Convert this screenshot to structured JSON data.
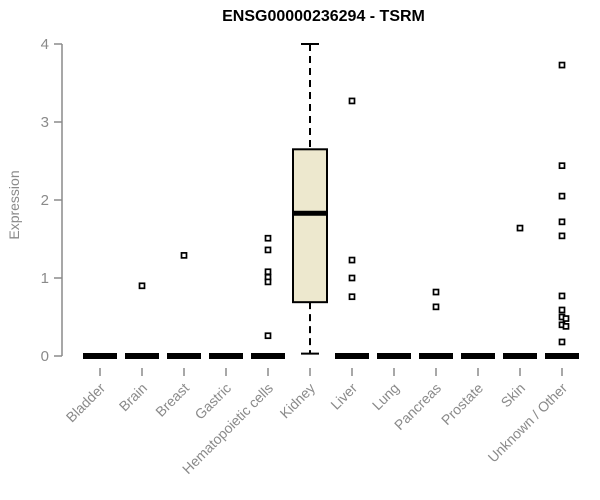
{
  "chart_data": {
    "type": "box",
    "title": "ENSG00000236294 - TSRM",
    "ylabel": "Expression",
    "xlabel": "",
    "ylim": [
      0,
      4
    ],
    "yticks": [
      0,
      1,
      2,
      3,
      4
    ],
    "grid": false,
    "legend": "none",
    "box_fill": "#ede8ce",
    "box_stroke": "#000000",
    "axis_color": "#8a8a8a",
    "categories": [
      "Bladder",
      "Brain",
      "Breast",
      "Gastric",
      "Hematopoietic cells",
      "Kidney",
      "Liver",
      "Lung",
      "Pancreas",
      "Prostate",
      "Skin",
      "Unknown / Other"
    ],
    "series": [
      {
        "category": "Bladder",
        "median": 0,
        "q1": 0,
        "q3": 0,
        "whisker_low": 0,
        "whisker_high": 0,
        "outliers": []
      },
      {
        "category": "Brain",
        "median": 0,
        "q1": 0,
        "q3": 0,
        "whisker_low": 0,
        "whisker_high": 0,
        "outliers": [
          0.9
        ]
      },
      {
        "category": "Breast",
        "median": 0,
        "q1": 0,
        "q3": 0,
        "whisker_low": 0,
        "whisker_high": 0,
        "outliers": [
          1.29
        ]
      },
      {
        "category": "Gastric",
        "median": 0,
        "q1": 0,
        "q3": 0,
        "whisker_low": 0,
        "whisker_high": 0,
        "outliers": []
      },
      {
        "category": "Hematopoietic cells",
        "median": 0,
        "q1": 0,
        "q3": 0,
        "whisker_low": 0,
        "whisker_high": 0,
        "outliers": [
          1.51,
          1.36,
          1.08,
          1.01,
          0.95,
          0.26
        ]
      },
      {
        "category": "Kidney",
        "median": 1.83,
        "q1": 0.69,
        "q3": 2.65,
        "whisker_low": 0.03,
        "whisker_high": 4.0,
        "outliers": []
      },
      {
        "category": "Liver",
        "median": 0,
        "q1": 0,
        "q3": 0,
        "whisker_low": 0,
        "whisker_high": 0,
        "outliers": [
          3.27,
          1.23,
          1.0,
          0.76
        ]
      },
      {
        "category": "Lung",
        "median": 0,
        "q1": 0,
        "q3": 0,
        "whisker_low": 0,
        "whisker_high": 0,
        "outliers": []
      },
      {
        "category": "Pancreas",
        "median": 0,
        "q1": 0,
        "q3": 0,
        "whisker_low": 0,
        "whisker_high": 0,
        "outliers": [
          0.82,
          0.63
        ]
      },
      {
        "category": "Prostate",
        "median": 0,
        "q1": 0,
        "q3": 0,
        "whisker_low": 0,
        "whisker_high": 0,
        "outliers": []
      },
      {
        "category": "Skin",
        "median": 0,
        "q1": 0,
        "q3": 0,
        "whisker_low": 0,
        "whisker_high": 0,
        "outliers": [
          1.64
        ]
      },
      {
        "category": "Unknown / Other",
        "median": 0,
        "q1": 0,
        "q3": 0,
        "whisker_low": 0,
        "whisker_high": 0,
        "outliers": [
          3.73,
          2.44,
          2.05,
          1.72,
          1.54,
          0.77,
          0.59,
          0.5,
          0.48,
          0.4,
          0.38,
          0.18
        ]
      }
    ]
  }
}
